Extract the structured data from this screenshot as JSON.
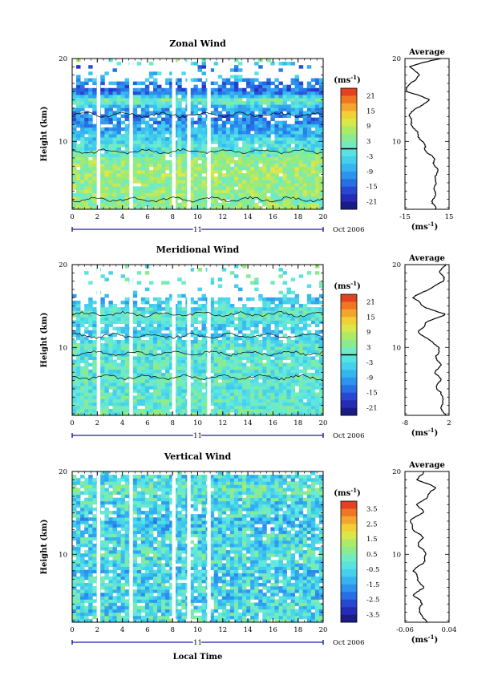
{
  "figure": {
    "xlabel": "Local Time",
    "date_label": "Oct 2006",
    "day_label": "11",
    "ylabel": "Height (km)",
    "unit_label": "(ms",
    "unit_sup": "-1",
    "profile_title": "Average",
    "profile_unit": "(ms",
    "profile_unit_sup": "-1"
  },
  "chart_data": [
    {
      "type": "heatmap",
      "title": "Zonal Wind",
      "xlabel": "Local Time",
      "ylabel": "Height (km)",
      "xlim": [
        0,
        20
      ],
      "ylim": [
        1.8,
        20
      ],
      "x_ticks": [
        "0",
        "2",
        "4",
        "6",
        "8",
        "10",
        "12",
        "14",
        "16",
        "18",
        "20"
      ],
      "y_ticks": [
        "10",
        "20"
      ],
      "colorbar": {
        "range": [
          -24,
          24
        ],
        "ticks": [
          "21",
          "15",
          "9",
          "3",
          "-3",
          "-9",
          "-15",
          "-21"
        ],
        "zero_line": true
      },
      "data_gaps_hours": [
        2.1,
        4.7,
        8.1,
        9.3,
        10.9
      ],
      "profile": {
        "title": "Average",
        "xlim": [
          -15,
          15
        ],
        "x_ticks": [
          "-15",
          "15"
        ],
        "y_ticks": [
          "10",
          "20"
        ],
        "heights": [
          2,
          3,
          4,
          5,
          6,
          7,
          8,
          9,
          10,
          11,
          12,
          13,
          14,
          15,
          16,
          17,
          18,
          19,
          20
        ],
        "values": [
          5,
          4,
          6,
          5,
          7,
          6,
          4,
          -1,
          -3,
          -7,
          -10,
          -12,
          -8,
          3,
          -14,
          -12,
          -4,
          -13,
          9
        ]
      }
    },
    {
      "type": "heatmap",
      "title": "Meridional Wind",
      "xlabel": "Local Time",
      "ylabel": "Height (km)",
      "xlim": [
        0,
        20
      ],
      "ylim": [
        1.8,
        20
      ],
      "x_ticks": [
        "0",
        "2",
        "4",
        "6",
        "8",
        "10",
        "12",
        "14",
        "16",
        "18",
        "20"
      ],
      "y_ticks": [
        "10",
        "20"
      ],
      "colorbar": {
        "range": [
          -24,
          24
        ],
        "ticks": [
          "21",
          "15",
          "9",
          "3",
          "-3",
          "-9",
          "-15",
          "-21"
        ],
        "zero_line": true
      },
      "data_gaps_hours": [
        2.1,
        4.7,
        8.1,
        9.3,
        10.9
      ],
      "profile": {
        "title": "Average",
        "xlim": [
          -8,
          2
        ],
        "x_ticks": [
          "-8",
          "2"
        ],
        "y_ticks": [
          "10",
          "20"
        ],
        "heights": [
          2,
          3,
          4,
          5,
          6,
          7,
          8,
          9,
          10,
          11,
          12,
          13,
          14,
          15,
          16,
          17,
          18,
          19,
          20
        ],
        "values": [
          1,
          0,
          1,
          -1,
          0,
          -1,
          0,
          -1,
          0,
          -3,
          -5,
          -3,
          1,
          -4,
          -6,
          -3,
          1,
          0,
          1
        ]
      }
    },
    {
      "type": "heatmap",
      "title": "Vertical Wind",
      "xlabel": "Local Time",
      "ylabel": "Height (km)",
      "xlim": [
        0,
        20
      ],
      "ylim": [
        1.8,
        20
      ],
      "x_ticks": [
        "0",
        "2",
        "4",
        "6",
        "8",
        "10",
        "12",
        "14",
        "16",
        "18",
        "20"
      ],
      "y_ticks": [
        "10",
        "20"
      ],
      "colorbar": {
        "range": [
          -4,
          4
        ],
        "ticks": [
          "3.5",
          "2.5",
          "1.5",
          "0.5",
          "-0.5",
          "-1.5",
          "-2.5",
          "-3.5"
        ],
        "zero_line": false
      },
      "data_gaps_hours": [
        2.1,
        4.7,
        8.1,
        9.3,
        10.9
      ],
      "profile": {
        "title": "Average",
        "xlim": [
          -0.06,
          0.04
        ],
        "x_ticks": [
          "-0.06",
          "0.04"
        ],
        "y_ticks": [
          "10",
          "20"
        ],
        "heights": [
          2,
          3,
          4,
          5,
          6,
          7,
          8,
          9,
          10,
          11,
          12,
          13,
          14,
          15,
          16,
          17,
          18,
          19,
          20
        ],
        "values": [
          -0.01,
          -0.03,
          -0.02,
          -0.04,
          -0.02,
          -0.03,
          -0.04,
          -0.02,
          -0.01,
          -0.03,
          -0.02,
          -0.04,
          -0.05,
          -0.02,
          -0.03,
          -0.01,
          0.01,
          -0.03,
          -0.02
        ]
      }
    }
  ]
}
